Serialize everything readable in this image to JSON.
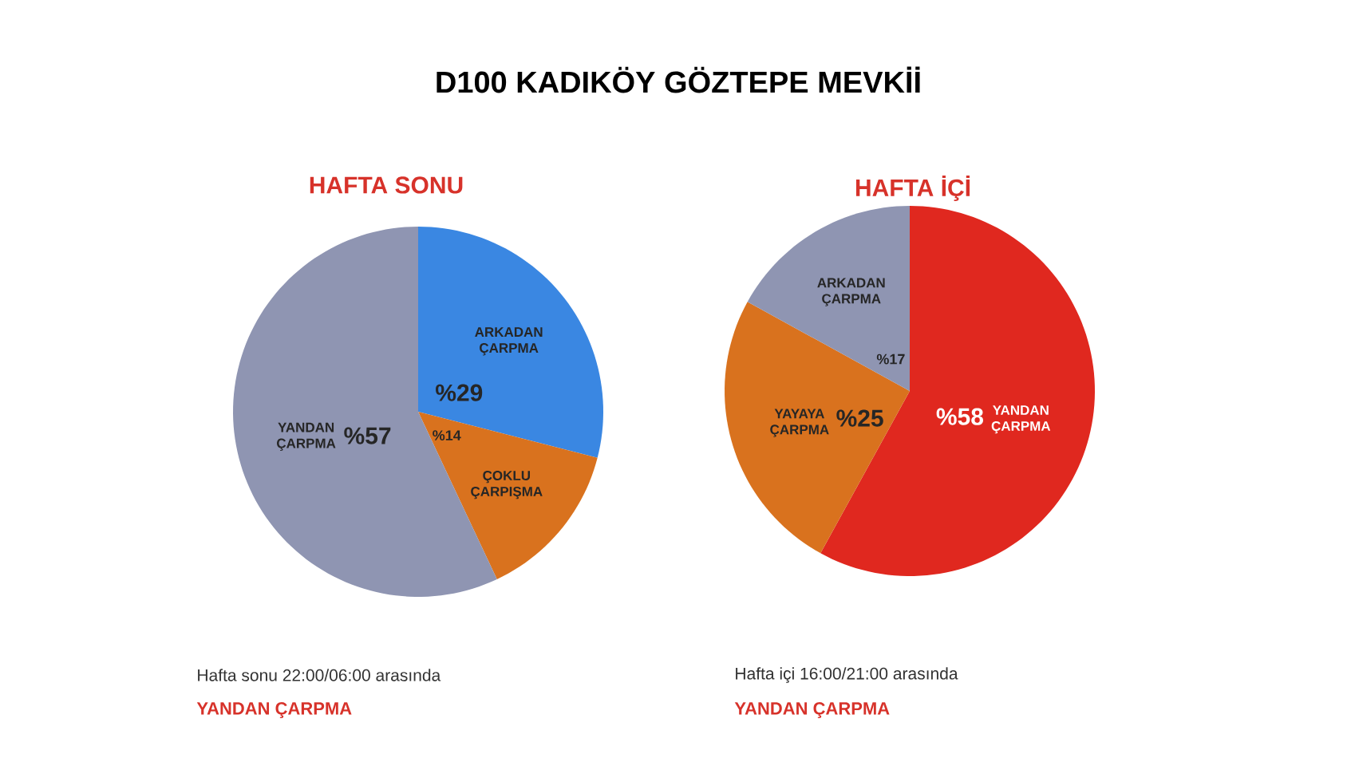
{
  "chart_data": [
    {
      "type": "other",
      "title": "D100 KADIKÖY GÖZTEPE MEVKİİ"
    },
    {
      "type": "pie",
      "title": "HAFTA SONU",
      "categories": [
        "ARKADAN ÇARPMA",
        "ÇOKLU ÇARPIŞMA",
        "YANDAN ÇARPMA"
      ],
      "values": [
        29,
        14,
        57
      ],
      "colors": [
        "#3a87e2",
        "#d9721e",
        "#8f95b2"
      ],
      "value_labels": [
        "%29",
        "%14",
        "%57"
      ],
      "annotations": [
        "Hafta sonu 22:00/06:00 arasında",
        "YANDAN ÇARPMA"
      ]
    },
    {
      "type": "pie",
      "title": "HAFTA İÇİ",
      "categories": [
        "YANDAN ÇARPMA",
        "YAYAYA ÇARPMA",
        "ARKADAN ÇARPMA"
      ],
      "values": [
        58,
        25,
        17
      ],
      "colors": [
        "#e0281f",
        "#d9721e",
        "#8f95b2"
      ],
      "value_labels": [
        "%58",
        "%25",
        "%17"
      ],
      "annotations": [
        "Hafta içi 16:00/21:00 arasında",
        "YANDAN ÇARPMA"
      ]
    }
  ]
}
